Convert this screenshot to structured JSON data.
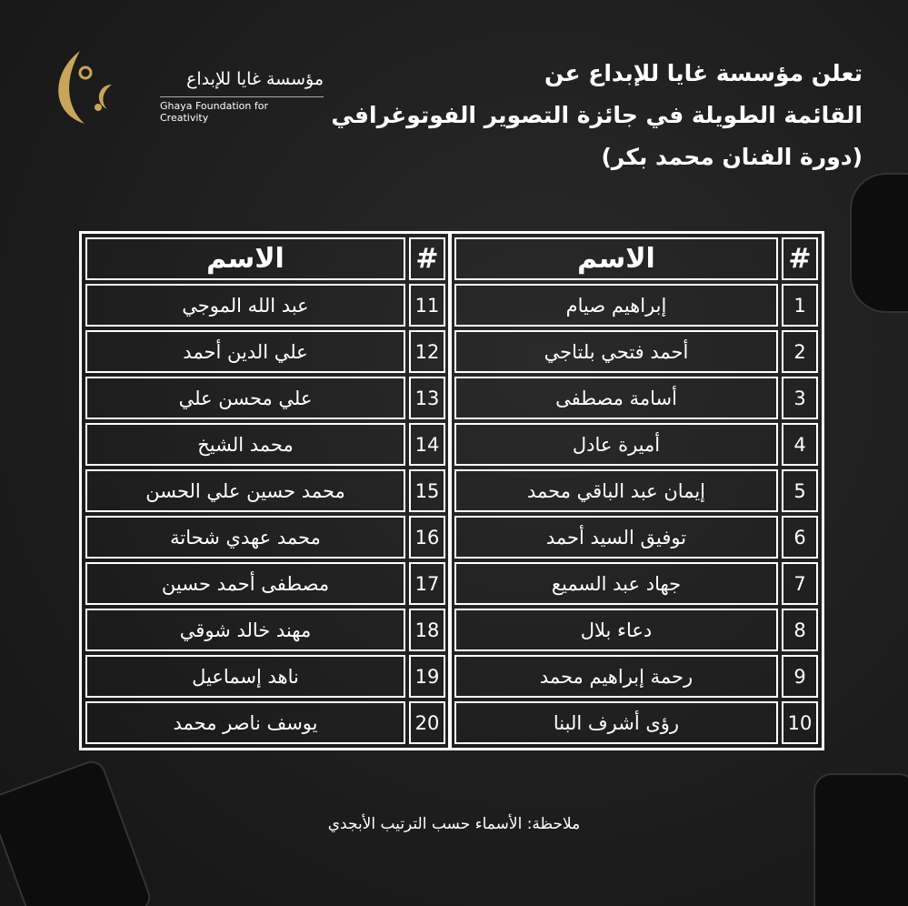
{
  "logo": {
    "arabic": "مؤسسة غايا للإبداع",
    "english": "Ghaya Foundation for Creativity",
    "color": "#c9a55a"
  },
  "title": {
    "lines": [
      "تعلن مؤسسة غايا للإبداع عن",
      "القائمة الطويلة في جائزة التصوير الفوتوغرافي",
      "(دورة الفنان محمد بكر)"
    ]
  },
  "table": {
    "header_num": "#",
    "header_name": "الاسم",
    "right": [
      {
        "n": "1",
        "name": "إبراهيم صيام"
      },
      {
        "n": "2",
        "name": "أحمد فتحي بلتاجي"
      },
      {
        "n": "3",
        "name": "أسامة مصطفى"
      },
      {
        "n": "4",
        "name": "أميرة عادل"
      },
      {
        "n": "5",
        "name": "إيمان عبد الباقي محمد"
      },
      {
        "n": "6",
        "name": "توفيق السيد أحمد"
      },
      {
        "n": "7",
        "name": "جهاد عبد السميع"
      },
      {
        "n": "8",
        "name": "دعاء بلال"
      },
      {
        "n": "9",
        "name": "رحمة إبراهيم محمد"
      },
      {
        "n": "10",
        "name": "رؤى أشرف البنا"
      }
    ],
    "left": [
      {
        "n": "11",
        "name": "عبد الله الموجي"
      },
      {
        "n": "12",
        "name": "علي الدين أحمد"
      },
      {
        "n": "13",
        "name": "علي محسن علي"
      },
      {
        "n": "14",
        "name": "محمد الشيخ"
      },
      {
        "n": "15",
        "name": "محمد حسين علي الحسن"
      },
      {
        "n": "16",
        "name": "محمد عهدي شحاتة"
      },
      {
        "n": "17",
        "name": "مصطفى أحمد حسين"
      },
      {
        "n": "18",
        "name": "مهند خالد شوقي"
      },
      {
        "n": "19",
        "name": "ناهد إسماعيل"
      },
      {
        "n": "20",
        "name": "يوسف ناصر محمد"
      }
    ]
  },
  "note": "ملاحظة: الأسماء حسب الترتيب الأبجدي"
}
